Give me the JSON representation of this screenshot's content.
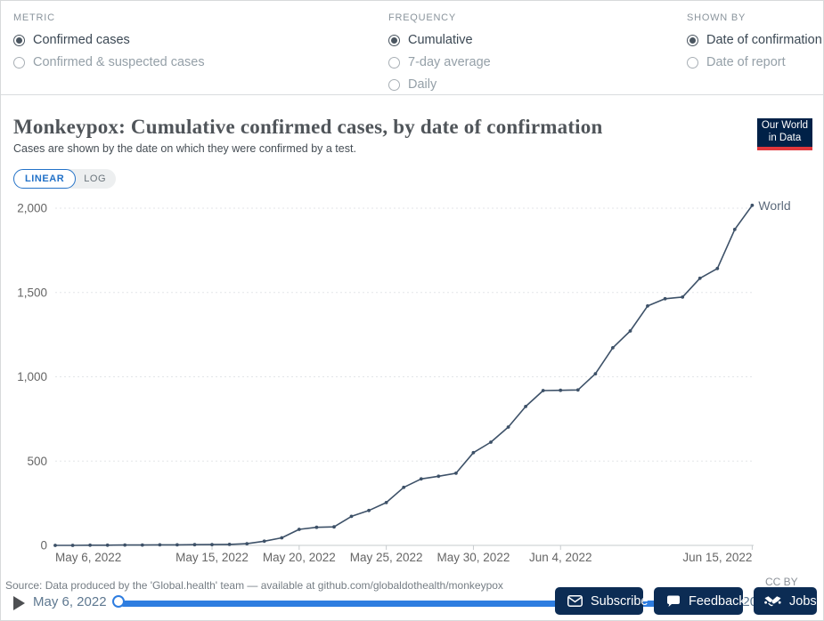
{
  "controls": {
    "metric": {
      "label": "METRIC",
      "options": [
        {
          "label": "Confirmed cases",
          "selected": true
        },
        {
          "label": "Confirmed & suspected cases",
          "selected": false
        }
      ]
    },
    "frequency": {
      "label": "FREQUENCY",
      "options": [
        {
          "label": "Cumulative",
          "selected": true
        },
        {
          "label": "7-day average",
          "selected": false
        },
        {
          "label": "Daily",
          "selected": false
        }
      ]
    },
    "shown_by": {
      "label": "SHOWN BY",
      "options": [
        {
          "label": "Date of confirmation",
          "selected": true
        },
        {
          "label": "Date of report",
          "selected": false
        }
      ]
    }
  },
  "header": {
    "title": "Monkeypox: Cumulative confirmed cases, by date of confirmation",
    "subtitle": "Cases are shown by the date on which they were confirmed by a test.",
    "logo_line1": "Our World",
    "logo_line2": "in Data"
  },
  "scale_toggle": {
    "linear": "LINEAR",
    "log": "LOG",
    "selected": "LINEAR"
  },
  "chart_data": {
    "type": "line",
    "title": "Monkeypox: Cumulative confirmed cases, by date of confirmation",
    "x": [
      "May 6, 2022",
      "May 7, 2022",
      "May 8, 2022",
      "May 9, 2022",
      "May 10, 2022",
      "May 11, 2022",
      "May 12, 2022",
      "May 13, 2022",
      "May 14, 2022",
      "May 15, 2022",
      "May 16, 2022",
      "May 17, 2022",
      "May 18, 2022",
      "May 19, 2022",
      "May 20, 2022",
      "May 21, 2022",
      "May 22, 2022",
      "May 23, 2022",
      "May 24, 2022",
      "May 25, 2022",
      "May 26, 2022",
      "May 27, 2022",
      "May 28, 2022",
      "May 29, 2022",
      "May 30, 2022",
      "May 31, 2022",
      "Jun 1, 2022",
      "Jun 2, 2022",
      "Jun 3, 2022",
      "Jun 4, 2022",
      "Jun 5, 2022",
      "Jun 6, 2022",
      "Jun 7, 2022",
      "Jun 8, 2022",
      "Jun 9, 2022",
      "Jun 10, 2022",
      "Jun 11, 2022",
      "Jun 12, 2022",
      "Jun 13, 2022",
      "Jun 14, 2022",
      "Jun 15, 2022"
    ],
    "series": [
      {
        "name": "World",
        "color": "#3d5168",
        "values": [
          0,
          0,
          1,
          1,
          2,
          2,
          3,
          3,
          4,
          5,
          6,
          10,
          25,
          45,
          95,
          107,
          110,
          172,
          207,
          254,
          344,
          394,
          410,
          428,
          550,
          612,
          702,
          824,
          918,
          920,
          922,
          1018,
          1172,
          1272,
          1420,
          1463,
          1473,
          1584,
          1642,
          1874,
          2017
        ]
      }
    ],
    "ylim": [
      0,
      2100
    ],
    "yticks": [
      0,
      500,
      1000,
      1500,
      2000
    ],
    "ytick_labels": [
      "0",
      "500",
      "1,000",
      "1,500",
      "2,000"
    ],
    "xticks": [
      {
        "index": 0,
        "label": "May 6, 2022",
        "anchor": "start"
      },
      {
        "index": 9,
        "label": "May 15, 2022",
        "anchor": "middle"
      },
      {
        "index": 14,
        "label": "May 20, 2022",
        "anchor": "middle"
      },
      {
        "index": 19,
        "label": "May 25, 2022",
        "anchor": "middle"
      },
      {
        "index": 24,
        "label": "May 30, 2022",
        "anchor": "middle"
      },
      {
        "index": 29,
        "label": "Jun 4, 2022",
        "anchor": "middle"
      },
      {
        "index": 40,
        "label": "Jun 15, 2022",
        "anchor": "end"
      }
    ],
    "grid": "dashed-horizontal",
    "legend_position": "end-of-line-label",
    "end_label": "World"
  },
  "footer": {
    "source": "Source: Data produced by the 'Global.health' team — available at github.com/globaldothealth/monkeypox",
    "license": "CC BY",
    "timeline": {
      "start_label": "May 6, 2022",
      "end_label": "Jun 15, 2022"
    },
    "buttons": [
      {
        "label": "Subscribe",
        "icon": "envelope-icon"
      },
      {
        "label": "Feedback",
        "icon": "speech-bubble-icon"
      },
      {
        "label": "Jobs",
        "icon": "handshake-icon"
      }
    ]
  },
  "colors": {
    "line": "#3d5168",
    "accent_blue": "#2372c8",
    "slider_blue": "#2e7de0",
    "button_navy": "#0c2c54",
    "logo_navy": "#002147",
    "logo_red": "#e0373c",
    "axis_text": "#666666"
  }
}
